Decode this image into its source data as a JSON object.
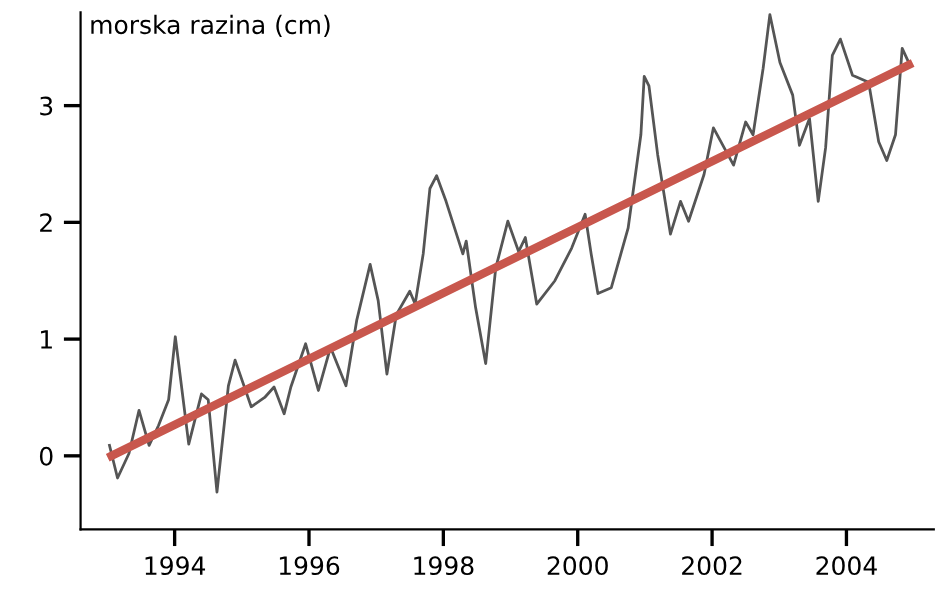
{
  "chart_data": {
    "type": "line",
    "ylabel": "morska razina (cm)",
    "xlim": [
      1992.6,
      2005.3
    ],
    "ylim": [
      -0.63,
      3.8
    ],
    "xticks": [
      1994,
      1996,
      1998,
      2000,
      2002,
      2004
    ],
    "yticks": [
      0,
      1,
      2,
      3
    ],
    "grid": false,
    "legend": false,
    "marker": "none",
    "line_style": "solid",
    "series": [
      {
        "color": "#555555",
        "x": [
          1993.03,
          1993.15,
          1993.32,
          1993.47,
          1993.62,
          1993.76,
          1993.91,
          1994.01,
          1994.21,
          1994.4,
          1994.5,
          1994.63,
          1994.8,
          1994.9,
          1995.14,
          1995.34,
          1995.48,
          1995.63,
          1995.73,
          1995.95,
          1996.14,
          1996.32,
          1996.55,
          1996.71,
          1996.91,
          1997.03,
          1997.16,
          1997.3,
          1997.5,
          1997.58,
          1997.7,
          1997.8,
          1997.9,
          1998.04,
          1998.29,
          1998.34,
          1998.48,
          1998.63,
          1998.78,
          1998.96,
          1999.12,
          1999.22,
          1999.39,
          1999.66,
          1999.91,
          2000.11,
          2000.2,
          2000.3,
          2000.5,
          2000.75,
          2000.94,
          2000.99,
          2001.06,
          2001.19,
          2001.38,
          2001.53,
          2001.65,
          2001.88,
          2002.02,
          2002.32,
          2002.5,
          2002.61,
          2002.76,
          2002.86,
          2003.01,
          2003.2,
          2003.3,
          2003.45,
          2003.58,
          2003.69,
          2003.79,
          2003.91,
          2004.09,
          2004.33,
          2004.48,
          2004.6,
          2004.73,
          2004.83,
          2004.95
        ],
        "values": [
          0.09,
          -0.19,
          0.02,
          0.39,
          0.09,
          0.26,
          0.48,
          1.02,
          0.1,
          0.53,
          0.48,
          -0.31,
          0.6,
          0.82,
          0.42,
          0.5,
          0.59,
          0.36,
          0.59,
          0.96,
          0.56,
          0.93,
          0.6,
          1.16,
          1.64,
          1.33,
          0.7,
          1.21,
          1.41,
          1.3,
          1.73,
          2.29,
          2.4,
          2.18,
          1.73,
          1.84,
          1.27,
          0.79,
          1.61,
          2.01,
          1.75,
          1.87,
          1.3,
          1.5,
          1.78,
          2.07,
          1.73,
          1.39,
          1.44,
          1.95,
          2.75,
          3.25,
          3.17,
          2.58,
          1.9,
          2.18,
          2.01,
          2.41,
          2.81,
          2.49,
          2.86,
          2.75,
          3.32,
          3.78,
          3.37,
          3.09,
          2.66,
          2.89,
          2.18,
          2.64,
          3.43,
          3.57,
          3.26,
          3.2,
          2.69,
          2.53,
          2.75,
          3.49,
          3.34
        ]
      },
      {
        "color": "#c8574d",
        "x": [
          1993.06,
          2004.93
        ],
        "values": [
          0.0,
          3.35
        ]
      }
    ]
  }
}
